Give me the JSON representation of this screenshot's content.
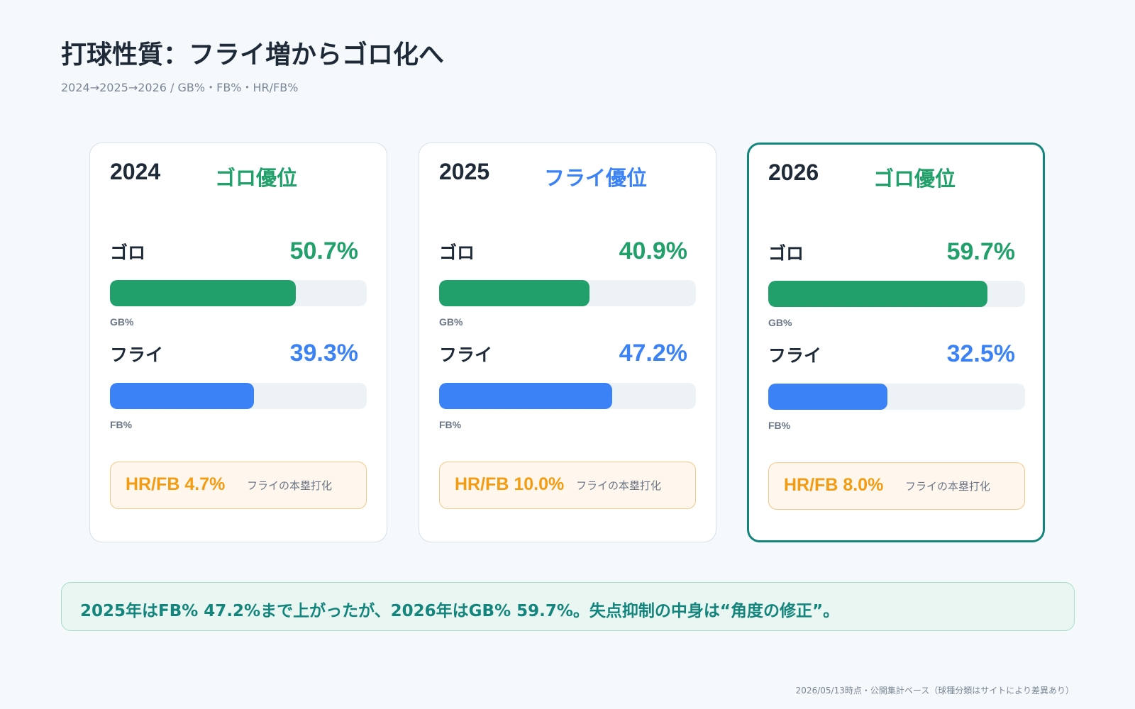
{
  "title": "打球性質：フライ増からゴロ化へ",
  "subtitle": "2024→2025→2026 / GB%・FB%・HR/FB%",
  "colors": {
    "ground": "#22a06b",
    "fly": "#3b82f6",
    "hr": "#f39c12",
    "accent": "#14857c"
  },
  "cards": [
    {
      "year": "2024",
      "verdict": "ゴロ優位",
      "verdict_color": "#22a06b",
      "ground_label": "ゴロ",
      "ground_value": "50.7%",
      "ground_caption": "GB%",
      "fly_label": "フライ",
      "fly_value": "39.3%",
      "fly_caption": "FB%",
      "hr_value": "HR/FB 4.7%",
      "hr_note": "フライの本塁打化"
    },
    {
      "year": "2025",
      "verdict": "フライ優位",
      "verdict_color": "#3b82f6",
      "ground_label": "ゴロ",
      "ground_value": "40.9%",
      "ground_caption": "GB%",
      "fly_label": "フライ",
      "fly_value": "47.2%",
      "fly_caption": "FB%",
      "hr_value": "HR/FB 10.0%",
      "hr_note": "フライの本塁打化"
    },
    {
      "year": "2026",
      "verdict": "ゴロ優位",
      "verdict_color": "#22a06b",
      "ground_label": "ゴロ",
      "ground_value": "59.7%",
      "ground_caption": "GB%",
      "fly_label": "フライ",
      "fly_value": "32.5%",
      "fly_caption": "FB%",
      "hr_value": "HR/FB 8.0%",
      "hr_note": "フライの本塁打化"
    }
  ],
  "chart_data": {
    "type": "bar",
    "categories": [
      "2024",
      "2025",
      "2026"
    ],
    "series": [
      {
        "name": "GB%",
        "values": [
          50.7,
          40.9,
          59.7
        ]
      },
      {
        "name": "FB%",
        "values": [
          39.3,
          47.2,
          32.5
        ]
      },
      {
        "name": "HR/FB",
        "values": [
          4.7,
          10.0,
          8.0
        ]
      }
    ],
    "value_unit": "%",
    "ylim": [
      0,
      70
    ]
  },
  "callout": "2025年はFB% 47.2%まで上がったが、2026年はGB% 59.7%。失点抑制の中身は“角度の修正”。",
  "footnote": "2026/05/13時点・公開集計ベース（球種分類はサイトにより差異あり）"
}
